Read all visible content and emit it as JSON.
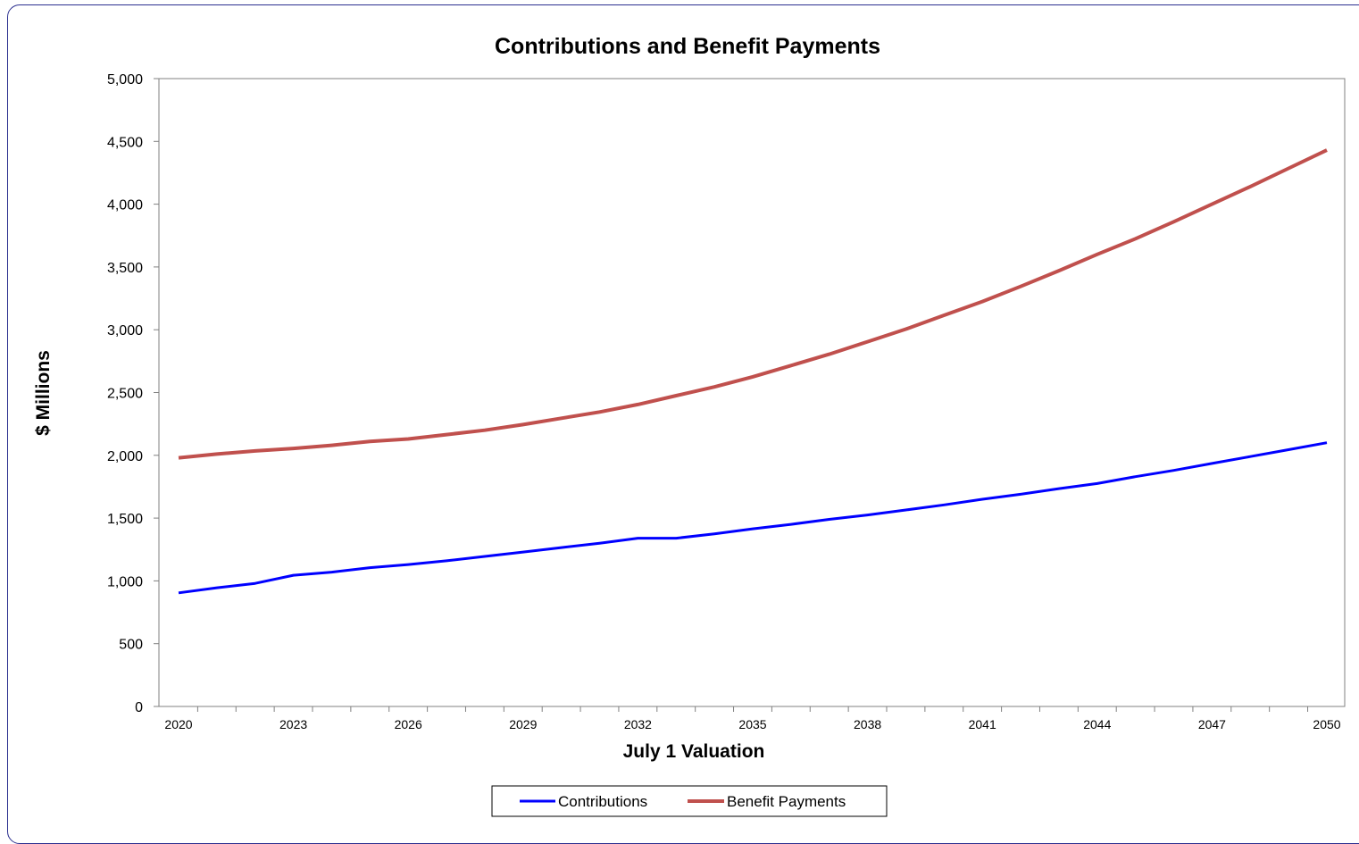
{
  "chart_data": {
    "type": "line",
    "title": "Contributions and Benefit Payments",
    "xlabel": "July 1 Valuation",
    "ylabel": "$ Millions",
    "ylim": [
      0,
      5000
    ],
    "xlim": [
      2020,
      2050
    ],
    "yticks": [
      "0",
      "500",
      "1,000",
      "1,500",
      "2,000",
      "2,500",
      "3,000",
      "3,500",
      "4,000",
      "4,500",
      "5,000"
    ],
    "xtick_labels": [
      "2020",
      "2023",
      "2026",
      "2029",
      "2032",
      "2035",
      "2038",
      "2041",
      "2044",
      "2047",
      "2050"
    ],
    "x": [
      2020,
      2021,
      2022,
      2023,
      2024,
      2025,
      2026,
      2027,
      2028,
      2029,
      2030,
      2031,
      2032,
      2033,
      2034,
      2035,
      2036,
      2037,
      2038,
      2039,
      2040,
      2041,
      2042,
      2043,
      2044,
      2045,
      2046,
      2047,
      2048,
      2049,
      2050
    ],
    "series": [
      {
        "name": "Contributions",
        "color": "#0000ff",
        "values": [
          905,
          945,
          980,
          1045,
          1070,
          1105,
          1130,
          1160,
          1195,
          1230,
          1265,
          1300,
          1340,
          1340,
          1375,
          1415,
          1450,
          1490,
          1525,
          1565,
          1605,
          1650,
          1690,
          1735,
          1775,
          1830,
          1880,
          1935,
          1990,
          2045,
          2100
        ]
      },
      {
        "name": "Benefit Payments",
        "color": "#c0504d",
        "values": [
          1980,
          2010,
          2035,
          2055,
          2080,
          2110,
          2130,
          2165,
          2200,
          2245,
          2295,
          2345,
          2405,
          2475,
          2545,
          2625,
          2715,
          2805,
          2905,
          3005,
          3115,
          3225,
          3345,
          3470,
          3600,
          3725,
          3860,
          4000,
          4140,
          4285,
          4430
        ]
      }
    ],
    "grid": false,
    "legend_position": "bottom"
  }
}
